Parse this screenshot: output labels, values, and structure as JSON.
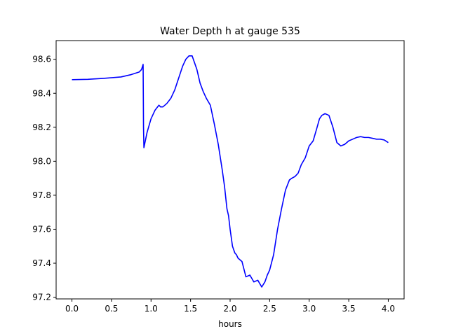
{
  "chart_data": {
    "type": "line",
    "title": "Water Depth h at gauge 535",
    "xlabel": "hours",
    "ylabel": "",
    "xlim": [
      -0.2,
      4.2
    ],
    "ylim": [
      97.19,
      98.71
    ],
    "xticks": [
      0.0,
      0.5,
      1.0,
      1.5,
      2.0,
      2.5,
      3.0,
      3.5,
      4.0
    ],
    "xtick_labels": [
      "0.0",
      "0.5",
      "1.0",
      "1.5",
      "2.0",
      "2.5",
      "3.0",
      "3.5",
      "4.0"
    ],
    "yticks": [
      97.2,
      97.4,
      97.6,
      97.8,
      98.0,
      98.2,
      98.4,
      98.6
    ],
    "ytick_labels": [
      "97.2",
      "97.4",
      "97.6",
      "97.8",
      "98.0",
      "98.2",
      "98.4",
      "98.6"
    ],
    "grid": false,
    "legend": "none",
    "series": [
      {
        "color": "#0000ff",
        "x": [
          0.0,
          0.2,
          0.4,
          0.62,
          0.75,
          0.85,
          0.88,
          0.9,
          0.905,
          0.91,
          0.95,
          1.0,
          1.05,
          1.1,
          1.12,
          1.15,
          1.2,
          1.25,
          1.3,
          1.35,
          1.4,
          1.44,
          1.48,
          1.52,
          1.55,
          1.58,
          1.62,
          1.66,
          1.7,
          1.75,
          1.8,
          1.85,
          1.9,
          1.93,
          1.96,
          1.98,
          2.0,
          2.03,
          2.06,
          2.08,
          2.1,
          2.15,
          2.2,
          2.25,
          2.3,
          2.35,
          2.4,
          2.44,
          2.47,
          2.5,
          2.55,
          2.6,
          2.65,
          2.7,
          2.75,
          2.78,
          2.82,
          2.86,
          2.9,
          2.95,
          3.0,
          3.05,
          3.1,
          3.13,
          3.16,
          3.2,
          3.25,
          3.3,
          3.35,
          3.4,
          3.45,
          3.5,
          3.55,
          3.6,
          3.65,
          3.7,
          3.75,
          3.8,
          3.85,
          3.9,
          3.95,
          4.0
        ],
        "values": [
          98.48,
          98.482,
          98.488,
          98.496,
          98.51,
          98.525,
          98.54,
          98.57,
          98.2,
          98.08,
          98.17,
          98.25,
          98.3,
          98.33,
          98.32,
          98.32,
          98.34,
          98.37,
          98.42,
          98.49,
          98.56,
          98.6,
          98.62,
          98.62,
          98.58,
          98.54,
          98.46,
          98.41,
          98.37,
          98.33,
          98.22,
          98.1,
          97.95,
          97.85,
          97.72,
          97.68,
          97.6,
          97.5,
          97.46,
          97.45,
          97.43,
          97.41,
          97.32,
          97.33,
          97.29,
          97.3,
          97.26,
          97.29,
          97.33,
          97.36,
          97.45,
          97.6,
          97.72,
          97.83,
          97.89,
          97.9,
          97.91,
          97.93,
          97.98,
          98.02,
          98.09,
          98.12,
          98.2,
          98.25,
          98.27,
          98.28,
          98.27,
          98.2,
          98.11,
          98.09,
          98.1,
          98.12,
          98.13,
          98.14,
          98.145,
          98.14,
          98.14,
          98.135,
          98.13,
          98.13,
          98.125,
          98.11
        ]
      }
    ]
  }
}
